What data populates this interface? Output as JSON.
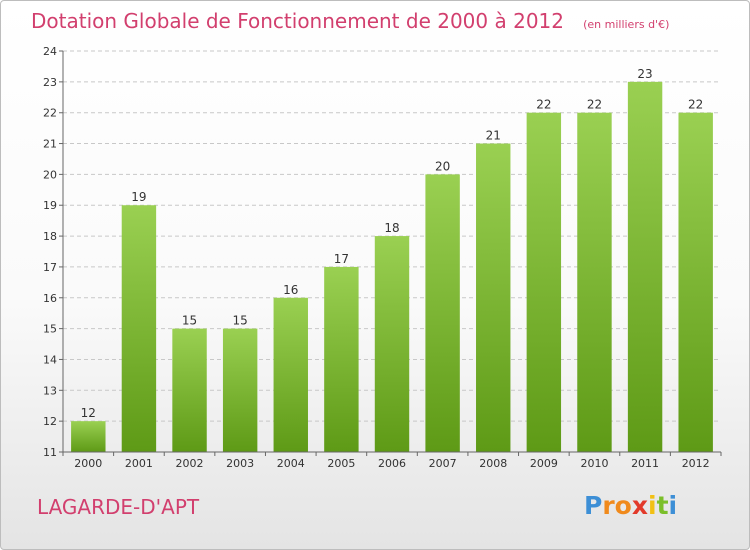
{
  "chart_data": {
    "type": "bar",
    "title": "Dotation Globale de Fonctionnement de 2000 à 2012",
    "unit": "(en milliers d'€)",
    "categories": [
      "2000",
      "2001",
      "2002",
      "2003",
      "2004",
      "2005",
      "2006",
      "2007",
      "2008",
      "2009",
      "2010",
      "2011",
      "2012"
    ],
    "values": [
      12,
      19,
      15,
      15,
      16,
      17,
      18,
      20,
      21,
      22,
      22,
      23,
      22
    ],
    "value_labels": [
      "12",
      "19",
      "15",
      "15",
      "16",
      "17",
      "18",
      "20",
      "21",
      "22",
      "22",
      "23",
      "22"
    ],
    "yticks": [
      "11",
      "12",
      "13",
      "14",
      "15",
      "16",
      "17",
      "18",
      "19",
      "20",
      "21",
      "22",
      "23",
      "24"
    ],
    "ylim": [
      11,
      24
    ],
    "grid": "horizontal dashed",
    "colors": {
      "bar_top": "#9ad052",
      "bar_bottom": "#5e9a16",
      "title": "#d23f6e",
      "grid": "#c8c8c8"
    }
  },
  "commune": "LAGARDE-D'APT",
  "brand": {
    "letters": [
      "P",
      "r",
      "o",
      "x",
      "i",
      "t",
      "i"
    ],
    "colors": [
      "#3d8fd6",
      "#f08a1c",
      "#f08a1c",
      "#e23a2a",
      "#f2c014",
      "#7bbf2a",
      "#3d8fd6"
    ]
  }
}
